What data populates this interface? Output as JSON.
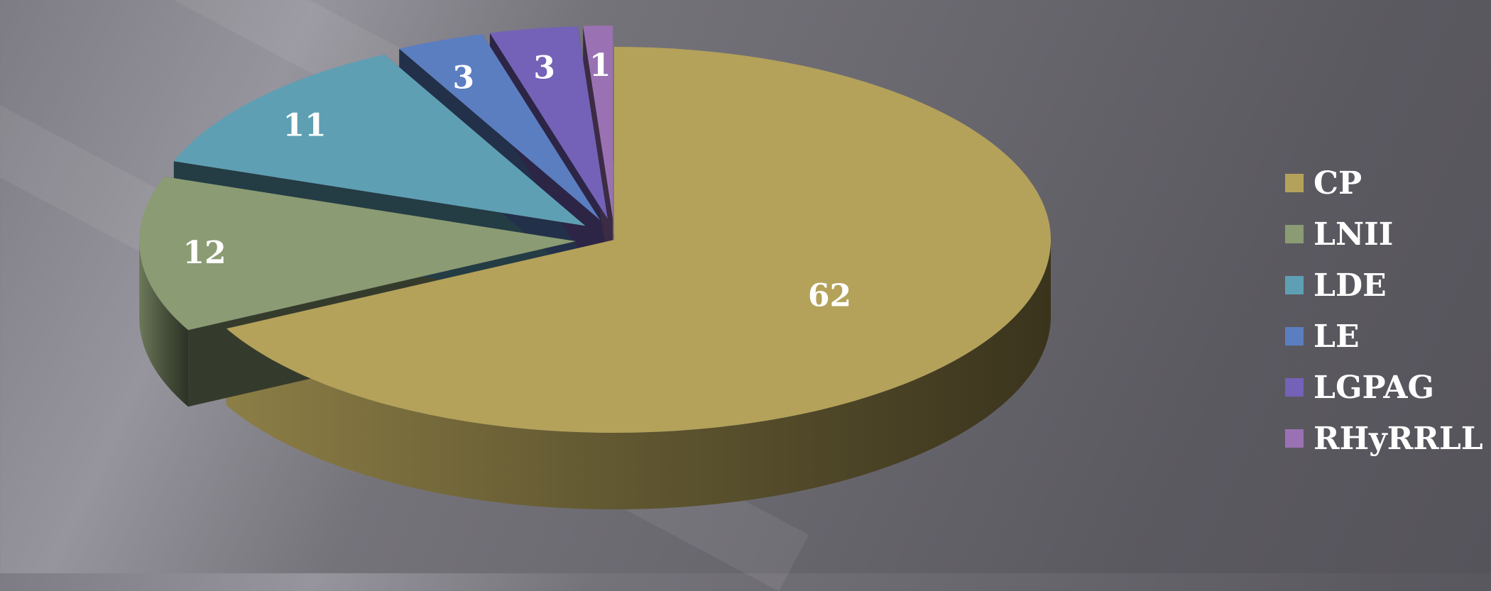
{
  "chart_data": {
    "type": "pie",
    "title": "",
    "categories": [
      "CP",
      "LNII",
      "LDE",
      "LE",
      "LGPAG",
      "RHyRRLL"
    ],
    "values": [
      62,
      12,
      11,
      3,
      3,
      1
    ],
    "data_labels": [
      "62",
      "12",
      "11",
      "3",
      "3",
      "1"
    ],
    "colors": {
      "CP": "#b4a25a",
      "LNII": "#8b9b73",
      "LDE": "#5f9fb4",
      "LE": "#5b7ec0",
      "LGPAG": "#7462b8",
      "RHyRRLL": "#9a72b4"
    },
    "style": "3d-exploded",
    "legend_position": "right"
  }
}
